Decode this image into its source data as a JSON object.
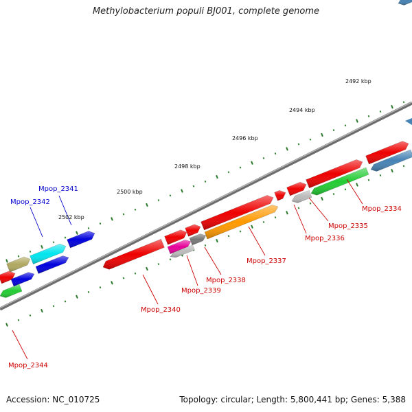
{
  "title": "Methylobacterium populi BJ001, complete genome",
  "accession": "Accession: NC_010725",
  "summary": "Topology: circular; Length: 5,800,441 bp; Genes: 5,388",
  "colors": {
    "red": "#ee0000",
    "cyan": "#00e5ee",
    "blue": "#0000dd",
    "green": "#22cc33",
    "orange": "#ff9900",
    "steel": "#4682b4",
    "olive": "#b0a860",
    "magenta": "#e60099",
    "grey": "#777777",
    "lightgrey": "#bbbbbb",
    "axis": "#808080",
    "tick": "#2a7a2a",
    "label_red": "#cc0000",
    "label_blue": "#0000cc"
  },
  "ticks": [
    {
      "label": "2492 kbp"
    },
    {
      "label": "2494 kbp"
    },
    {
      "label": "2496 kbp"
    },
    {
      "label": "2498 kbp"
    },
    {
      "label": "2500 kbp"
    },
    {
      "label": "2502 kbp"
    }
  ],
  "genes": [
    {
      "name": "Mpop_2334",
      "color": "red"
    },
    {
      "name": "Mpop_2335",
      "color": "lightgrey"
    },
    {
      "name": "Mpop_2336",
      "color": "red"
    },
    {
      "name": "Mpop_2337",
      "color": "orange"
    },
    {
      "name": "Mpop_2338",
      "color": "grey"
    },
    {
      "name": "Mpop_2339",
      "color": "magenta"
    },
    {
      "name": "Mpop_2340",
      "color": "red"
    },
    {
      "name": "Mpop_2341",
      "color": "blue"
    },
    {
      "name": "Mpop_2342",
      "color": "cyan"
    },
    {
      "name": "Mpop_2344",
      "color": "green"
    }
  ]
}
